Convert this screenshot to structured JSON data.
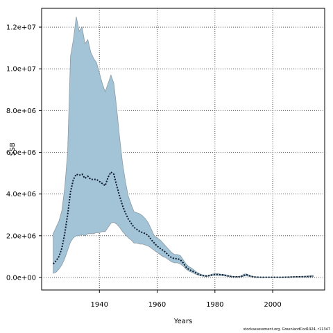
{
  "chart_data": {
    "type": "area",
    "xlabel": "Years",
    "ylabel": "SSB",
    "xlim": [
      1920,
      2018
    ],
    "ylim": [
      -600000,
      12900000
    ],
    "x_ticks": [
      1940,
      1960,
      1980,
      2000
    ],
    "y_ticks": [
      0,
      2000000,
      4000000,
      6000000,
      8000000,
      10000000,
      12000000
    ],
    "y_tick_labels": [
      "0.0e+00",
      "2.0e+06",
      "4.0e+06",
      "6.0e+06",
      "8.0e+06",
      "1.0e+07",
      "1.2e+07"
    ],
    "grid": true,
    "band_color": "#a3c4d6",
    "band_edge_color": "#8a9aa6",
    "line_color": "#0b1a2e",
    "years": [
      1924,
      1925,
      1926,
      1927,
      1928,
      1929,
      1930,
      1931,
      1932,
      1933,
      1934,
      1935,
      1936,
      1937,
      1938,
      1939,
      1940,
      1941,
      1942,
      1943,
      1944,
      1945,
      1946,
      1947,
      1948,
      1949,
      1950,
      1951,
      1952,
      1953,
      1954,
      1955,
      1956,
      1957,
      1958,
      1959,
      1960,
      1961,
      1962,
      1963,
      1964,
      1965,
      1966,
      1967,
      1968,
      1969,
      1970,
      1971,
      1972,
      1973,
      1974,
      1975,
      1976,
      1977,
      1978,
      1979,
      1980,
      1981,
      1982,
      1983,
      1984,
      1985,
      1986,
      1987,
      1988,
      1989,
      1990,
      1991,
      1992,
      1993,
      1994,
      1995,
      1996,
      1997,
      1998,
      1999,
      2000,
      2001,
      2002,
      2003,
      2004,
      2005,
      2006,
      2007,
      2008,
      2009,
      2010,
      2011,
      2012,
      2013,
      2014
    ],
    "ssb": [
      650000,
      800000,
      1000000,
      1400000,
      2100000,
      3000000,
      4100000,
      4700000,
      4950000,
      4900000,
      4950000,
      4750000,
      4850000,
      4700000,
      4700000,
      4700000,
      4600000,
      4500000,
      4400000,
      4800000,
      5050000,
      4950000,
      4400000,
      3900000,
      3450000,
      3100000,
      2800000,
      2600000,
      2400000,
      2300000,
      2200000,
      2150000,
      2100000,
      2000000,
      1800000,
      1650000,
      1500000,
      1400000,
      1300000,
      1200000,
      1050000,
      950000,
      900000,
      900000,
      850000,
      700000,
      500000,
      380000,
      320000,
      250000,
      170000,
      120000,
      90000,
      70000,
      90000,
      120000,
      140000,
      140000,
      130000,
      120000,
      90000,
      60000,
      40000,
      30000,
      30000,
      40000,
      100000,
      130000,
      80000,
      40000,
      20000,
      15000,
      10000,
      10000,
      10000,
      10000,
      10000,
      10000,
      10000,
      10000,
      10000,
      15000,
      20000,
      25000,
      30000,
      30000,
      35000,
      40000,
      45000,
      50000,
      60000
    ],
    "ssb_upper": [
      2100000,
      2400000,
      2700000,
      3200000,
      4300000,
      6000000,
      10600000,
      11400000,
      12500000,
      11800000,
      12000000,
      11200000,
      11400000,
      10800000,
      10500000,
      10300000,
      9800000,
      9300000,
      8900000,
      9300000,
      9700000,
      9300000,
      8100000,
      6700000,
      5500000,
      4600000,
      3900000,
      3500000,
      3150000,
      3100000,
      3050000,
      2950000,
      2800000,
      2600000,
      2300000,
      2000000,
      1900000,
      1800000,
      1650000,
      1500000,
      1350000,
      1200000,
      1100000,
      1100000,
      1050000,
      850000,
      650000,
      520000,
      440000,
      330000,
      230000,
      160000,
      110000,
      90000,
      110000,
      160000,
      180000,
      180000,
      160000,
      150000,
      120000,
      80000,
      60000,
      50000,
      50000,
      70000,
      160000,
      170000,
      100000,
      55000,
      35000,
      25000,
      20000,
      20000,
      20000,
      20000,
      20000,
      20000,
      20000,
      20000,
      25000,
      30000,
      35000,
      40000,
      45000,
      50000,
      55000,
      60000,
      70000,
      80000,
      100000
    ],
    "ssb_lower": [
      200000,
      250000,
      400000,
      600000,
      900000,
      1300000,
      1700000,
      1900000,
      2000000,
      2000000,
      2050000,
      2000000,
      2100000,
      2100000,
      2100000,
      2150000,
      2150000,
      2200000,
      2200000,
      2400000,
      2600000,
      2650000,
      2550000,
      2400000,
      2200000,
      2050000,
      1900000,
      1800000,
      1650000,
      1650000,
      1600000,
      1600000,
      1550000,
      1500000,
      1400000,
      1300000,
      1200000,
      1100000,
      1000000,
      950000,
      850000,
      750000,
      700000,
      700000,
      650000,
      550000,
      400000,
      300000,
      250000,
      180000,
      120000,
      80000,
      60000,
      50000,
      60000,
      90000,
      100000,
      100000,
      90000,
      80000,
      60000,
      40000,
      25000,
      20000,
      20000,
      25000,
      60000,
      80000,
      50000,
      25000,
      10000,
      8000,
      5000,
      5000,
      5000,
      5000,
      5000,
      5000,
      5000,
      5000,
      6000,
      8000,
      10000,
      12000,
      15000,
      15000,
      18000,
      20000,
      22000,
      25000,
      30000
    ]
  },
  "credit": "stockassessment.org, GreenlandCod1924, r11347"
}
